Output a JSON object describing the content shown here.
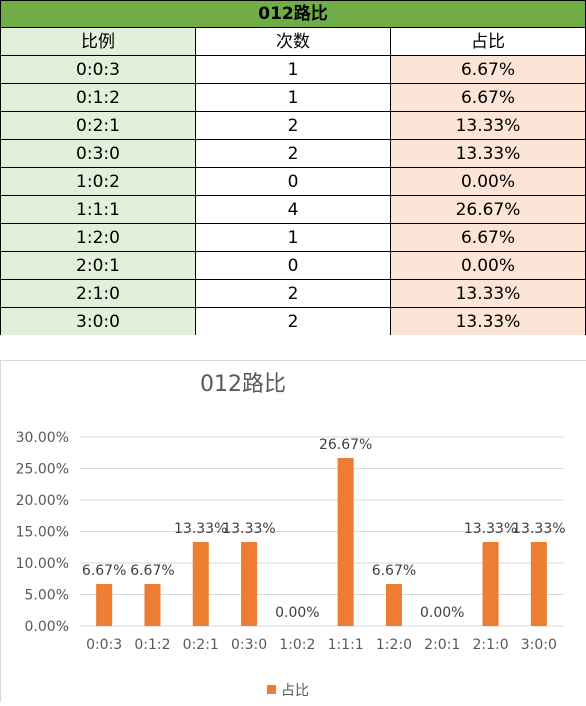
{
  "table": {
    "title": "012路比",
    "headers": [
      "比例",
      "次数",
      "占比"
    ],
    "rows": [
      [
        "0:0:3",
        "1",
        "6.67%"
      ],
      [
        "0:1:2",
        "1",
        "6.67%"
      ],
      [
        "0:2:1",
        "2",
        "13.33%"
      ],
      [
        "0:3:0",
        "2",
        "13.33%"
      ],
      [
        "1:0:2",
        "0",
        "0.00%"
      ],
      [
        "1:1:1",
        "4",
        "26.67%"
      ],
      [
        "1:2:0",
        "1",
        "6.67%"
      ],
      [
        "2:0:1",
        "0",
        "0.00%"
      ],
      [
        "2:1:0",
        "2",
        "13.33%"
      ],
      [
        "3:0:0",
        "2",
        "13.33%"
      ]
    ]
  },
  "chart_data": {
    "type": "bar",
    "title": "012路比",
    "categories": [
      "0:0:3",
      "0:1:2",
      "0:2:1",
      "0:3:0",
      "1:0:2",
      "1:1:1",
      "1:2:0",
      "2:0:1",
      "2:1:0",
      "3:0:0"
    ],
    "series": [
      {
        "name": "占比",
        "values": [
          6.67,
          6.67,
          13.33,
          13.33,
          0.0,
          26.67,
          6.67,
          0.0,
          13.33,
          13.33
        ],
        "labels": [
          "6.67%",
          "6.67%",
          "13.33%",
          "13.33%",
          "0.00%",
          "26.67%",
          "6.67%",
          "0.00%",
          "13.33%",
          "13.33%"
        ],
        "color": "#ed7d31"
      }
    ],
    "ylim": [
      0,
      30
    ],
    "yticks": [
      "0.00%",
      "5.00%",
      "10.00%",
      "15.00%",
      "20.00%",
      "25.00%",
      "30.00%"
    ],
    "grid": true,
    "legend": "bottom"
  }
}
